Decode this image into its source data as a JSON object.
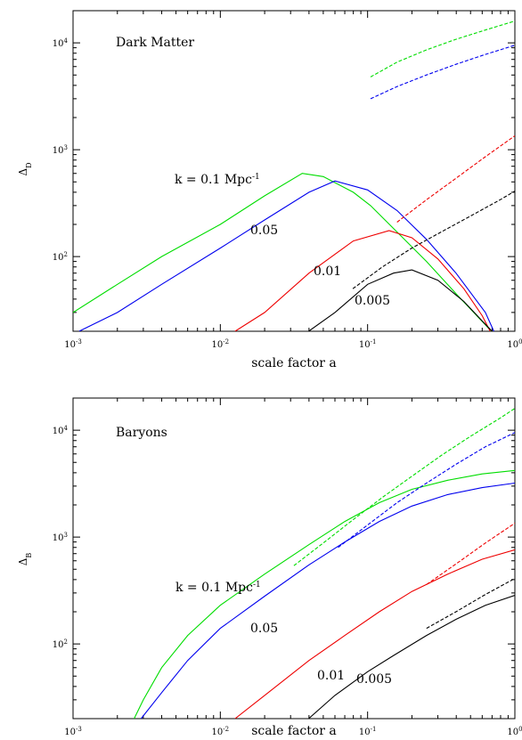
{
  "chart_data": [
    {
      "type": "line",
      "title": "Dark Matter",
      "xlabel": "scale factor a",
      "ylabel": "Δ",
      "ylabel_sub": "D",
      "x_scale": "log",
      "y_scale": "log",
      "xlim": [
        0.001,
        1
      ],
      "ylim": [
        20,
        20000
      ],
      "x_ticks": [
        {
          "base": "10",
          "exp": "-3"
        },
        {
          "base": "10",
          "exp": "-2"
        },
        {
          "base": "10",
          "exp": "-1"
        },
        {
          "base": "10",
          "exp": "0"
        }
      ],
      "y_ticks": [
        {
          "base": "10",
          "exp": "2"
        },
        {
          "base": "10",
          "exp": "3"
        },
        {
          "base": "10",
          "exp": "4"
        }
      ],
      "curve_labels": [
        {
          "text": "k = 0.1 Mpc",
          "sup": "-1"
        },
        {
          "text": "0.05",
          "sup": ""
        },
        {
          "text": "0.01",
          "sup": ""
        },
        {
          "text": "0.005",
          "sup": ""
        }
      ],
      "series": [
        {
          "color": "#00dd00",
          "style": "dashed",
          "x": [
            0.1047,
            0.1585,
            0.2512,
            0.3981,
            0.631,
            1.0
          ],
          "y": [
            4800,
            6600,
            8600,
            10800,
            13200,
            16000
          ]
        },
        {
          "color": "#00dd00",
          "style": "solid",
          "x": [
            0.001,
            0.002,
            0.004,
            0.01,
            0.02,
            0.036,
            0.05,
            0.08,
            0.1047,
            0.1585,
            0.2512,
            0.3981,
            0.631,
            0.69
          ],
          "y": [
            30,
            55,
            100,
            200,
            370,
            600,
            560,
            400,
            300,
            170,
            90,
            45,
            23,
            20
          ]
        },
        {
          "color": "#0000ee",
          "style": "dashed",
          "x": [
            0.1047,
            0.1585,
            0.2512,
            0.3981,
            0.631,
            1.0
          ],
          "y": [
            3000,
            3900,
            5000,
            6300,
            7800,
            9500
          ]
        },
        {
          "color": "#0000ee",
          "style": "solid",
          "x": [
            0.0011,
            0.002,
            0.004,
            0.01,
            0.02,
            0.04,
            0.06,
            0.1,
            0.1585,
            0.2512,
            0.3981,
            0.631,
            0.72
          ],
          "y": [
            20,
            30,
            55,
            120,
            220,
            400,
            510,
            420,
            270,
            145,
            70,
            30,
            20
          ]
        },
        {
          "color": "#ee0000",
          "style": "dashed",
          "x": [
            0.1585,
            0.2512,
            0.3981,
            0.631,
            1.0
          ],
          "y": [
            210,
            340,
            540,
            860,
            1350
          ]
        },
        {
          "color": "#ee0000",
          "style": "solid",
          "x": [
            0.0126,
            0.02,
            0.04,
            0.08,
            0.14,
            0.2,
            0.3,
            0.45,
            0.6,
            0.68
          ],
          "y": [
            20,
            30,
            70,
            140,
            175,
            150,
            95,
            50,
            28,
            20
          ]
        },
        {
          "color": "#000000",
          "style": "dashed",
          "x": [
            0.0794,
            0.1259,
            0.1995,
            0.3162,
            0.5012,
            0.7943,
            1.0
          ],
          "y": [
            50,
            80,
            120,
            170,
            240,
            340,
            410
          ]
        },
        {
          "color": "#000000",
          "style": "solid",
          "x": [
            0.0398,
            0.06,
            0.1,
            0.15,
            0.2,
            0.3,
            0.45,
            0.6,
            0.7
          ],
          "y": [
            20,
            30,
            55,
            70,
            75,
            60,
            38,
            25,
            20
          ]
        }
      ]
    },
    {
      "type": "line",
      "title": "Baryons",
      "xlabel": "scale factor a",
      "ylabel": "Δ",
      "ylabel_sub": "B",
      "x_scale": "log",
      "y_scale": "log",
      "xlim": [
        0.001,
        1
      ],
      "ylim": [
        20,
        20000
      ],
      "x_ticks": [
        {
          "base": "10",
          "exp": "-3"
        },
        {
          "base": "10",
          "exp": "-2"
        },
        {
          "base": "10",
          "exp": "-1"
        },
        {
          "base": "10",
          "exp": "0"
        }
      ],
      "y_ticks": [
        {
          "base": "10",
          "exp": "2"
        },
        {
          "base": "10",
          "exp": "3"
        },
        {
          "base": "10",
          "exp": "4"
        }
      ],
      "curve_labels": [
        {
          "text": "k = 0.1 Mpc",
          "sup": "-1"
        },
        {
          "text": "0.05",
          "sup": ""
        },
        {
          "text": "0.01",
          "sup": ""
        },
        {
          "text": "0.005",
          "sup": ""
        }
      ],
      "series": [
        {
          "color": "#00dd00",
          "style": "dashed",
          "x": [
            0.0316,
            0.05,
            0.0794,
            0.1259,
            0.1995,
            0.3162,
            0.5012,
            0.7943,
            1.0
          ],
          "y": [
            540,
            880,
            1450,
            2350,
            3700,
            5800,
            8800,
            13000,
            16000
          ]
        },
        {
          "color": "#00dd00",
          "style": "solid",
          "x": [
            0.0026,
            0.003,
            0.004,
            0.006,
            0.01,
            0.02,
            0.04,
            0.07,
            0.12,
            0.2,
            0.35,
            0.6,
            1.0
          ],
          "y": [
            20,
            30,
            60,
            120,
            230,
            450,
            850,
            1400,
            2100,
            2800,
            3400,
            3900,
            4200
          ]
        },
        {
          "color": "#0000ee",
          "style": "dashed",
          "x": [
            0.0631,
            0.1,
            0.1585,
            0.2512,
            0.3981,
            0.631,
            1.0
          ],
          "y": [
            800,
            1300,
            2100,
            3200,
            4800,
            7000,
            9500
          ]
        },
        {
          "color": "#0000ee",
          "style": "solid",
          "x": [
            0.0029,
            0.004,
            0.006,
            0.01,
            0.02,
            0.04,
            0.07,
            0.12,
            0.2,
            0.35,
            0.6,
            1.0
          ],
          "y": [
            20,
            35,
            70,
            140,
            280,
            550,
            900,
            1400,
            1950,
            2500,
            2900,
            3200
          ]
        },
        {
          "color": "#ee0000",
          "style": "dashed",
          "x": [
            0.2512,
            0.3981,
            0.631,
            1.0
          ],
          "y": [
            360,
            560,
            880,
            1350
          ]
        },
        {
          "color": "#ee0000",
          "style": "solid",
          "x": [
            0.0126,
            0.02,
            0.04,
            0.07,
            0.12,
            0.2,
            0.35,
            0.6,
            1.0
          ],
          "y": [
            20,
            33,
            70,
            120,
            200,
            310,
            450,
            620,
            760
          ]
        },
        {
          "color": "#000000",
          "style": "dashed",
          "x": [
            0.2512,
            0.3981,
            0.631,
            1.0
          ],
          "y": [
            140,
            200,
            290,
            410
          ]
        },
        {
          "color": "#000000",
          "style": "solid",
          "x": [
            0.0398,
            0.06,
            0.1,
            0.15,
            0.2512,
            0.3981,
            0.631,
            1.0
          ],
          "y": [
            20,
            33,
            55,
            78,
            120,
            170,
            230,
            285
          ]
        }
      ]
    }
  ]
}
